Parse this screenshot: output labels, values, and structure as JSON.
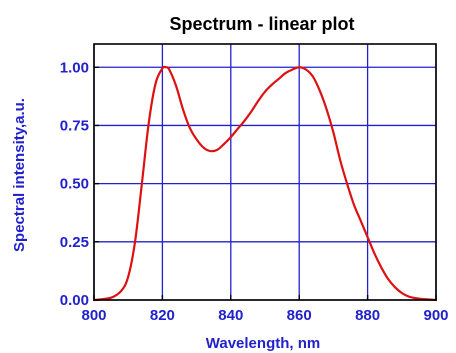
{
  "chart_data": {
    "type": "line",
    "title": "Spectrum - linear plot",
    "xlabel": "Wavelength, nm",
    "ylabel": "Spectral intensity,a.u.",
    "xlim": [
      800,
      900
    ],
    "ylim": [
      0,
      1.1
    ],
    "x_ticks": [
      800,
      820,
      840,
      860,
      880,
      900
    ],
    "x_tick_labels": [
      "800",
      "820",
      "840",
      "860",
      "880",
      "900"
    ],
    "y_ticks": [
      0,
      0.25,
      0.5,
      0.75,
      1.0
    ],
    "y_tick_labels": [
      "0.00",
      "0.25",
      "0.50",
      "0.75",
      "1.00"
    ],
    "grid": true,
    "colors": {
      "series": "#dd1111",
      "grid": "#2222cc",
      "axis_text": "#2222cc",
      "frame": "#000000"
    },
    "series": [
      {
        "x": [
          800,
          805,
          808,
          810,
          812,
          814,
          816,
          818,
          820,
          821,
          822,
          824,
          826,
          828,
          830,
          832,
          834,
          836,
          838,
          840,
          842,
          844,
          846,
          848,
          850,
          852,
          854,
          856,
          858,
          860,
          862,
          864,
          866,
          868,
          870,
          872,
          874,
          876,
          878,
          880,
          882,
          884,
          886,
          888,
          890,
          892,
          894,
          896,
          898,
          900
        ],
        "y": [
          0.0,
          0.01,
          0.04,
          0.1,
          0.25,
          0.5,
          0.76,
          0.93,
          0.995,
          1.0,
          0.99,
          0.92,
          0.82,
          0.74,
          0.69,
          0.655,
          0.64,
          0.645,
          0.67,
          0.7,
          0.735,
          0.77,
          0.81,
          0.855,
          0.895,
          0.925,
          0.95,
          0.975,
          0.99,
          1.0,
          0.99,
          0.96,
          0.9,
          0.82,
          0.72,
          0.6,
          0.5,
          0.41,
          0.34,
          0.27,
          0.2,
          0.14,
          0.09,
          0.055,
          0.03,
          0.015,
          0.008,
          0.004,
          0.002,
          0.0
        ]
      }
    ]
  }
}
